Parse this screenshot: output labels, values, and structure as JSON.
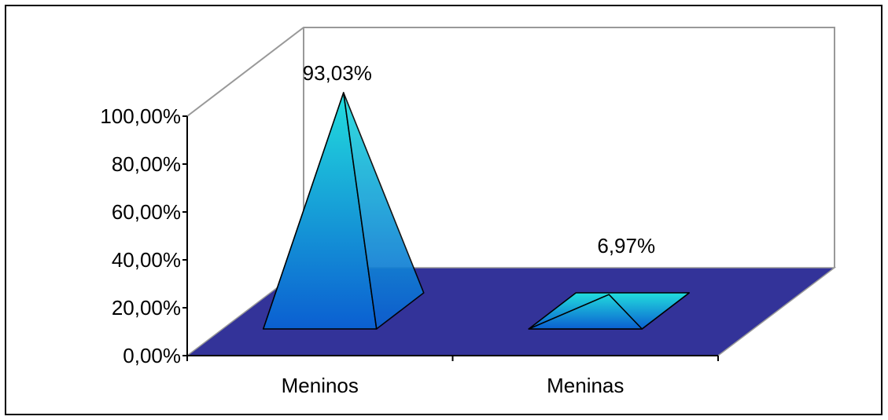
{
  "chart_data": {
    "type": "bar",
    "style": "3d-pyramid",
    "categories": [
      "Meninos",
      "Meninas"
    ],
    "values": [
      93.03,
      6.97
    ],
    "value_labels": [
      "93,03%",
      "6,97%"
    ],
    "y_ticks": [
      "0,00%",
      "20,00%",
      "40,00%",
      "60,00%",
      "80,00%",
      "100,00%"
    ],
    "ylim": [
      0,
      100
    ],
    "grid": false,
    "colors": {
      "floor": "#333399",
      "pyramid_top": "#22dddd",
      "pyramid_bottom": "#0b5fd1",
      "wall_edge": "#999999",
      "outline": "#000000"
    }
  }
}
